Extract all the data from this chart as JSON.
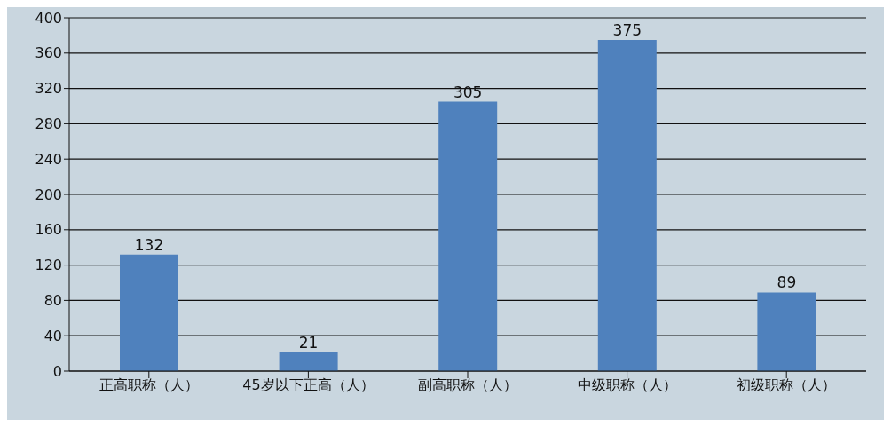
{
  "chart_data": {
    "type": "bar",
    "categories": [
      "正高职称（人）",
      "45岁以下正高（人）",
      "副高职称（人）",
      "中级职称（人）",
      "初级职称（人）"
    ],
    "values": [
      132,
      21,
      305,
      375,
      89
    ],
    "color": "#4f81bd",
    "ylim": [
      0,
      400
    ],
    "yticks": [
      0,
      40,
      80,
      120,
      160,
      200,
      240,
      280,
      320,
      360,
      400
    ],
    "grid": "y",
    "data_labels": true
  }
}
